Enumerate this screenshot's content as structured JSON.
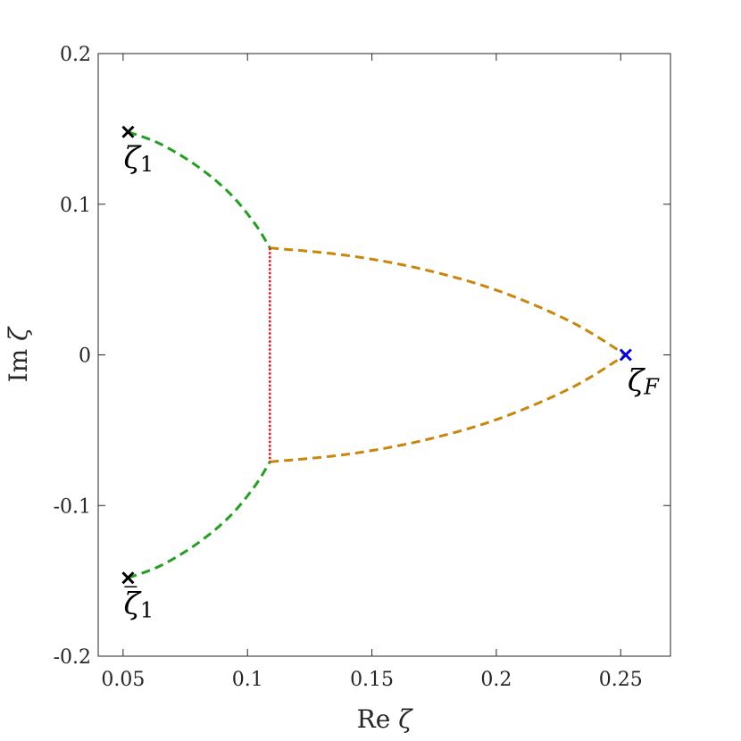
{
  "chart_data": {
    "type": "line",
    "xlabel": "Re ζ",
    "ylabel": "Im ζ",
    "xlim": [
      0.04,
      0.27
    ],
    "ylim": [
      -0.2,
      0.2
    ],
    "x_ticks": [
      0.05,
      0.1,
      0.15,
      0.2,
      0.25
    ],
    "x_tick_labels": [
      "0.05",
      "0.1",
      "0.15",
      "0.2",
      "0.25"
    ],
    "y_ticks": [
      -0.2,
      -0.1,
      0,
      0.1,
      0.2
    ],
    "y_tick_labels": [
      "-0.2",
      "-0.1",
      "0",
      "0.1",
      "0.2"
    ],
    "grid": false,
    "series": [
      {
        "style": "dashed",
        "color": "#22a022",
        "points": [
          [
            0.052,
            0.148
          ],
          [
            0.065,
            0.14
          ],
          [
            0.08,
            0.125
          ],
          [
            0.093,
            0.107
          ],
          [
            0.103,
            0.087
          ],
          [
            0.109,
            0.071
          ]
        ]
      },
      {
        "style": "dashed",
        "color": "#22a022",
        "points": [
          [
            0.052,
            -0.148
          ],
          [
            0.065,
            -0.14
          ],
          [
            0.08,
            -0.125
          ],
          [
            0.093,
            -0.107
          ],
          [
            0.103,
            -0.087
          ],
          [
            0.109,
            -0.071
          ]
        ]
      },
      {
        "style": "dashed",
        "color": "#c8860a",
        "points": [
          [
            0.109,
            0.071
          ],
          [
            0.14,
            0.066
          ],
          [
            0.17,
            0.057
          ],
          [
            0.2,
            0.043
          ],
          [
            0.23,
            0.022
          ],
          [
            0.252,
            0.0
          ]
        ]
      },
      {
        "style": "dashed",
        "color": "#c8860a",
        "points": [
          [
            0.109,
            -0.071
          ],
          [
            0.14,
            -0.066
          ],
          [
            0.17,
            -0.057
          ],
          [
            0.2,
            -0.043
          ],
          [
            0.23,
            -0.022
          ],
          [
            0.252,
            0.0
          ]
        ]
      },
      {
        "style": "dotted",
        "color": "#e8141e",
        "points": [
          [
            0.109,
            0.071
          ],
          [
            0.109,
            -0.071
          ]
        ]
      }
    ],
    "markers": [
      {
        "x": 0.052,
        "y": 0.148,
        "color": "#000000",
        "symbol": "x",
        "label_main": "ζ",
        "label_sub": "1",
        "bar": false
      },
      {
        "x": 0.052,
        "y": -0.148,
        "color": "#000000",
        "symbol": "x",
        "label_main": "ζ",
        "label_sub": "1",
        "bar": true
      },
      {
        "x": 0.252,
        "y": 0.0,
        "color": "#0000ee",
        "symbol": "x",
        "label_main": "ζ",
        "label_sub": "F",
        "bar": false
      }
    ]
  }
}
